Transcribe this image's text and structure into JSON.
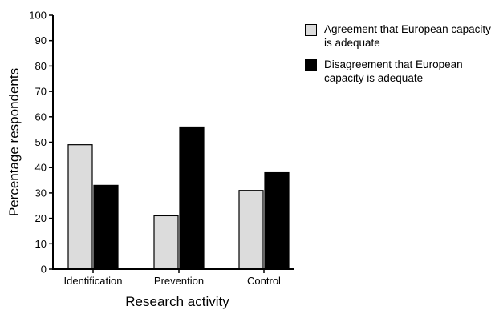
{
  "chart_data": {
    "type": "bar",
    "categories": [
      "Identification",
      "Prevention",
      "Control"
    ],
    "series": [
      {
        "name": "Agreement that European capacity is adequate",
        "values": [
          49,
          21,
          31
        ],
        "color": "#dcdcdc"
      },
      {
        "name": "Disagreement that European capacity is adequate",
        "values": [
          33,
          56,
          38
        ],
        "color": "#000000"
      }
    ],
    "xlabel": "Research activity",
    "ylabel": "Percentage respondents",
    "ylim": [
      0,
      100
    ],
    "yticks": [
      0,
      10,
      20,
      30,
      40,
      50,
      60,
      70,
      80,
      90,
      100
    ],
    "grid": false,
    "legend_position": "top-right"
  }
}
